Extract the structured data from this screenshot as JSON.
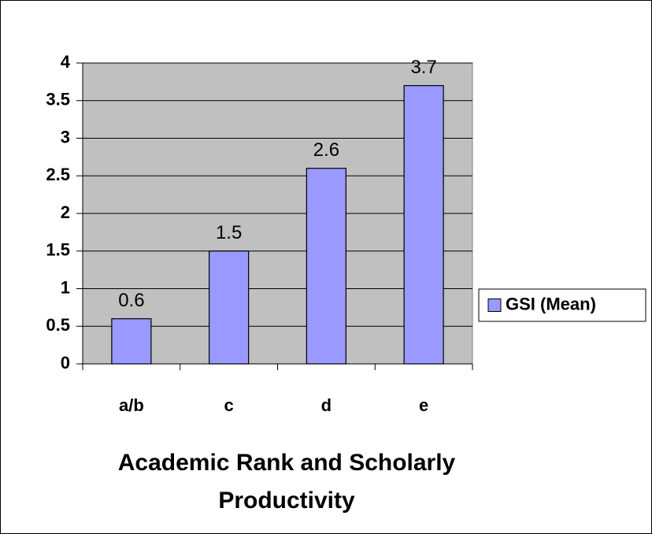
{
  "chart_data": {
    "type": "bar",
    "title": "Academic Rank and Scholarly Productivity",
    "categories": [
      "a/b",
      "c",
      "d",
      "e"
    ],
    "series": [
      {
        "name": "GSI (Mean)",
        "color": "#9999ff",
        "values": [
          0.6,
          1.5,
          2.6,
          3.7
        ]
      }
    ],
    "ylim": [
      0,
      4
    ],
    "yticks": [
      0,
      0.5,
      1,
      1.5,
      2,
      2.5,
      3,
      3.5,
      4
    ],
    "grid": true,
    "legend": "right",
    "plot_background": "#c0c0c0"
  }
}
